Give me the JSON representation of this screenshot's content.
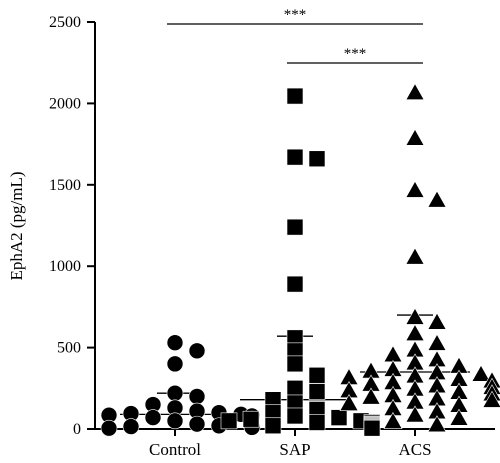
{
  "chart_data": {
    "type": "scatter",
    "ylabel": "EphA2 (pg/mL)",
    "ylim": [
      0,
      2500
    ],
    "yticks": [
      0,
      500,
      1000,
      1500,
      2000,
      2500
    ],
    "grid": false,
    "categories": [
      "Control",
      "SAP",
      "ACS"
    ],
    "series": [
      {
        "category": "Control",
        "marker": "circle",
        "mean": 90,
        "sd_upper": 220,
        "values": [
          530,
          480,
          400,
          220,
          200,
          150,
          130,
          110,
          100,
          95,
          90,
          85,
          80,
          70,
          60,
          50,
          45,
          40,
          35,
          30,
          30,
          25,
          25,
          20,
          20,
          15,
          15,
          10,
          10,
          5
        ]
      },
      {
        "category": "SAP",
        "marker": "square",
        "mean": 180,
        "sd_upper": 570,
        "values": [
          2045,
          1670,
          1660,
          1240,
          890,
          560,
          480,
          400,
          330,
          250,
          230,
          180,
          160,
          120,
          100,
          80,
          70,
          60,
          50,
          50,
          40,
          40,
          30,
          30,
          25,
          20,
          20,
          15,
          15,
          10,
          10,
          10,
          5,
          5
        ]
      },
      {
        "category": "ACS",
        "marker": "triangle",
        "mean": 350,
        "sd_upper": 700,
        "values": [
          2060,
          1780,
          1460,
          1400,
          1050,
          680,
          650,
          580,
          520,
          480,
          450,
          420,
          400,
          380,
          360,
          350,
          340,
          330,
          320,
          310,
          300,
          290,
          280,
          270,
          260,
          250,
          240,
          230,
          220,
          210,
          200,
          190,
          180,
          170,
          160,
          150,
          140,
          120,
          100,
          80,
          60,
          40,
          20
        ]
      }
    ],
    "comparisons": [
      {
        "from": "Control",
        "to": "ACS",
        "label": "***"
      },
      {
        "from": "SAP",
        "to": "ACS",
        "label": "***"
      }
    ]
  }
}
